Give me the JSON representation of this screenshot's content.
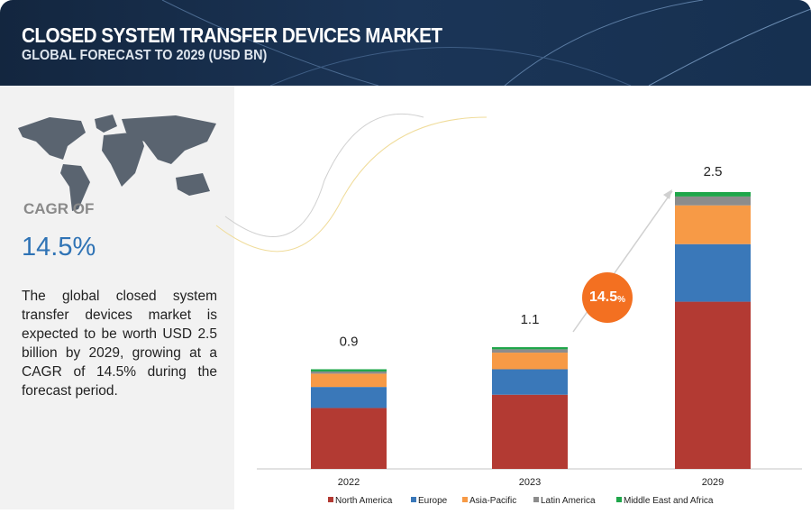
{
  "header": {
    "title": "CLOSED SYSTEM TRANSFER DEVICES MARKET",
    "subtitle": "GLOBAL FORECAST TO 2029 (USD BN)"
  },
  "left_panel": {
    "cagr_label": "CAGR OF",
    "cagr_value": "14.5%",
    "description": "The global closed system transfer devices market is expected to be worth USD 2.5 billion by 2029, growing at a CAGR of 14.5% during the forecast period."
  },
  "badge": {
    "value": "14.5",
    "unit": "%"
  },
  "colors": {
    "North America": "#b33a33",
    "Europe": "#3a78b9",
    "Asia-Pacific": "#f79a46",
    "Latin America": "#8c8c8c",
    "Middle East and Africa": "#1fa64a",
    "header": "#1b3557",
    "badge": "#f37021"
  },
  "chart_data": {
    "type": "bar",
    "stacked": true,
    "categories": [
      "2022",
      "2023",
      "2029"
    ],
    "totals": [
      "0.9",
      "1.1",
      "2.5"
    ],
    "ylim": [
      0,
      2.5
    ],
    "grid": false,
    "legend_position": "bottom",
    "series": [
      {
        "name": "North America",
        "values": [
          0.55,
          0.67,
          1.51
        ]
      },
      {
        "name": "Europe",
        "values": [
          0.19,
          0.23,
          0.52
        ]
      },
      {
        "name": "Asia-Pacific",
        "values": [
          0.12,
          0.15,
          0.35
        ]
      },
      {
        "name": "Latin America",
        "values": [
          0.02,
          0.03,
          0.08
        ]
      },
      {
        "name": "Middle East and Africa",
        "values": [
          0.02,
          0.02,
          0.04
        ]
      }
    ]
  }
}
